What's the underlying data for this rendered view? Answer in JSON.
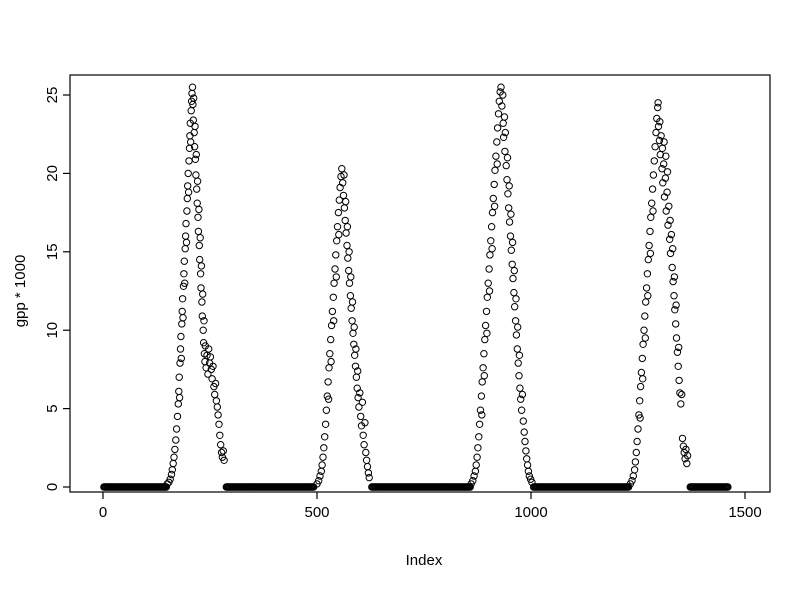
{
  "chart_data": {
    "type": "scatter",
    "title": "",
    "xlabel": "Index",
    "ylabel": "gpp * 1000",
    "xlim": [
      0,
      1500
    ],
    "ylim": [
      0,
      25.5
    ],
    "xticks": [
      0,
      500,
      1000,
      1500
    ],
    "yticks": [
      0,
      5,
      10,
      15,
      20,
      25
    ],
    "grid": false,
    "legend": "none",
    "marker": "open-circle",
    "marker_color": "#000000",
    "background": "#ffffff",
    "zero_run_step": 2,
    "zero_runs": [
      [
        2,
        148
      ],
      [
        288,
        492
      ],
      [
        628,
        858
      ],
      [
        1006,
        1228
      ],
      [
        1372,
        1460
      ]
    ],
    "points": [
      [
        150,
        0.2
      ],
      [
        154,
        0.3
      ],
      [
        157,
        0.5
      ],
      [
        160,
        0.8
      ],
      [
        162,
        1.1
      ],
      [
        164,
        1.5
      ],
      [
        166,
        1.9
      ],
      [
        168,
        2.4
      ],
      [
        170,
        3.0
      ],
      [
        172,
        3.7
      ],
      [
        174,
        4.5
      ],
      [
        176,
        5.3
      ],
      [
        177,
        6.1
      ],
      [
        178,
        7.0
      ],
      [
        179,
        5.7
      ],
      [
        180,
        7.9
      ],
      [
        181,
        8.8
      ],
      [
        182,
        9.6
      ],
      [
        183,
        8.2
      ],
      [
        184,
        10.4
      ],
      [
        185,
        11.2
      ],
      [
        186,
        12.0
      ],
      [
        187,
        10.8
      ],
      [
        188,
        12.8
      ],
      [
        189,
        13.6
      ],
      [
        190,
        14.4
      ],
      [
        191,
        13.0
      ],
      [
        192,
        15.2
      ],
      [
        193,
        16.0
      ],
      [
        194,
        16.8
      ],
      [
        195,
        15.6
      ],
      [
        196,
        17.6
      ],
      [
        197,
        18.4
      ],
      [
        198,
        19.2
      ],
      [
        199,
        20.0
      ],
      [
        200,
        18.8
      ],
      [
        201,
        20.8
      ],
      [
        202,
        21.6
      ],
      [
        203,
        22.4
      ],
      [
        204,
        23.2
      ],
      [
        205,
        22.0
      ],
      [
        206,
        24.0
      ],
      [
        207,
        24.6
      ],
      [
        208,
        25.1
      ],
      [
        209,
        25.5
      ],
      [
        210,
        24.4
      ],
      [
        211,
        23.4
      ],
      [
        212,
        24.8
      ],
      [
        213,
        22.6
      ],
      [
        214,
        21.7
      ],
      [
        215,
        23.0
      ],
      [
        216,
        20.9
      ],
      [
        217,
        19.9
      ],
      [
        218,
        21.2
      ],
      [
        219,
        19.0
      ],
      [
        220,
        18.1
      ],
      [
        221,
        19.5
      ],
      [
        222,
        17.2
      ],
      [
        223,
        16.3
      ],
      [
        224,
        17.7
      ],
      [
        225,
        15.4
      ],
      [
        226,
        14.5
      ],
      [
        227,
        15.9
      ],
      [
        228,
        13.6
      ],
      [
        229,
        12.7
      ],
      [
        230,
        14.1
      ],
      [
        231,
        11.8
      ],
      [
        232,
        10.9
      ],
      [
        233,
        12.3
      ],
      [
        234,
        10.0
      ],
      [
        235,
        9.2
      ],
      [
        236,
        10.6
      ],
      [
        237,
        8.5
      ],
      [
        238,
        8.0
      ],
      [
        239,
        9.0
      ],
      [
        241,
        7.6
      ],
      [
        243,
        8.4
      ],
      [
        245,
        7.2
      ],
      [
        247,
        8.8
      ],
      [
        249,
        7.9
      ],
      [
        251,
        8.3
      ],
      [
        253,
        7.5
      ],
      [
        255,
        6.9
      ],
      [
        257,
        7.7
      ],
      [
        259,
        6.4
      ],
      [
        261,
        5.9
      ],
      [
        263,
        6.6
      ],
      [
        265,
        5.5
      ],
      [
        267,
        5.1
      ],
      [
        269,
        4.6
      ],
      [
        271,
        4.0
      ],
      [
        273,
        3.3
      ],
      [
        275,
        2.7
      ],
      [
        277,
        2.2
      ],
      [
        279,
        1.9
      ],
      [
        281,
        2.3
      ],
      [
        283,
        1.7
      ],
      [
        500,
        0.2
      ],
      [
        504,
        0.4
      ],
      [
        507,
        0.7
      ],
      [
        510,
        1.0
      ],
      [
        512,
        1.4
      ],
      [
        514,
        1.9
      ],
      [
        516,
        2.5
      ],
      [
        518,
        3.2
      ],
      [
        520,
        4.0
      ],
      [
        522,
        4.9
      ],
      [
        524,
        5.8
      ],
      [
        526,
        6.7
      ],
      [
        527,
        5.6
      ],
      [
        528,
        7.6
      ],
      [
        530,
        8.5
      ],
      [
        532,
        9.4
      ],
      [
        533,
        8.0
      ],
      [
        534,
        10.3
      ],
      [
        536,
        11.2
      ],
      [
        538,
        12.1
      ],
      [
        539,
        10.6
      ],
      [
        540,
        13.0
      ],
      [
        542,
        13.9
      ],
      [
        544,
        14.8
      ],
      [
        545,
        13.4
      ],
      [
        546,
        15.7
      ],
      [
        548,
        16.6
      ],
      [
        550,
        17.5
      ],
      [
        551,
        16.1
      ],
      [
        552,
        18.3
      ],
      [
        554,
        19.1
      ],
      [
        556,
        19.8
      ],
      [
        558,
        20.3
      ],
      [
        560,
        19.4
      ],
      [
        562,
        18.6
      ],
      [
        563,
        19.9
      ],
      [
        564,
        17.8
      ],
      [
        566,
        17.0
      ],
      [
        567,
        18.2
      ],
      [
        568,
        16.2
      ],
      [
        570,
        15.4
      ],
      [
        571,
        16.6
      ],
      [
        572,
        14.6
      ],
      [
        574,
        13.8
      ],
      [
        575,
        15.0
      ],
      [
        576,
        13.0
      ],
      [
        578,
        12.2
      ],
      [
        579,
        13.4
      ],
      [
        580,
        11.4
      ],
      [
        582,
        10.6
      ],
      [
        583,
        11.8
      ],
      [
        584,
        9.8
      ],
      [
        586,
        9.1
      ],
      [
        587,
        10.2
      ],
      [
        588,
        8.4
      ],
      [
        590,
        7.7
      ],
      [
        591,
        8.8
      ],
      [
        592,
        7.0
      ],
      [
        594,
        6.3
      ],
      [
        595,
        7.4
      ],
      [
        596,
        5.7
      ],
      [
        598,
        5.1
      ],
      [
        600,
        6.0
      ],
      [
        602,
        4.5
      ],
      [
        604,
        3.9
      ],
      [
        606,
        5.4
      ],
      [
        608,
        3.3
      ],
      [
        610,
        2.7
      ],
      [
        612,
        4.1
      ],
      [
        614,
        2.2
      ],
      [
        616,
        1.7
      ],
      [
        618,
        1.3
      ],
      [
        620,
        0.9
      ],
      [
        622,
        0.6
      ],
      [
        860,
        0.2
      ],
      [
        864,
        0.4
      ],
      [
        867,
        0.7
      ],
      [
        870,
        1.0
      ],
      [
        872,
        1.4
      ],
      [
        874,
        1.9
      ],
      [
        876,
        2.5
      ],
      [
        878,
        3.2
      ],
      [
        880,
        4.0
      ],
      [
        882,
        4.9
      ],
      [
        884,
        5.8
      ],
      [
        885,
        4.6
      ],
      [
        886,
        6.7
      ],
      [
        888,
        7.6
      ],
      [
        890,
        8.5
      ],
      [
        891,
        7.1
      ],
      [
        892,
        9.4
      ],
      [
        894,
        10.3
      ],
      [
        896,
        11.2
      ],
      [
        897,
        9.8
      ],
      [
        898,
        12.1
      ],
      [
        900,
        13.0
      ],
      [
        902,
        13.9
      ],
      [
        903,
        12.5
      ],
      [
        904,
        14.8
      ],
      [
        906,
        15.7
      ],
      [
        908,
        16.6
      ],
      [
        909,
        15.2
      ],
      [
        910,
        17.5
      ],
      [
        912,
        18.4
      ],
      [
        914,
        19.3
      ],
      [
        915,
        17.9
      ],
      [
        916,
        20.2
      ],
      [
        918,
        21.1
      ],
      [
        920,
        22.0
      ],
      [
        921,
        20.6
      ],
      [
        922,
        22.9
      ],
      [
        924,
        23.8
      ],
      [
        926,
        24.6
      ],
      [
        928,
        25.2
      ],
      [
        930,
        25.5
      ],
      [
        932,
        24.3
      ],
      [
        934,
        25.0
      ],
      [
        935,
        23.2
      ],
      [
        936,
        22.3
      ],
      [
        938,
        23.6
      ],
      [
        939,
        21.4
      ],
      [
        940,
        22.6
      ],
      [
        942,
        20.5
      ],
      [
        944,
        19.6
      ],
      [
        945,
        21.0
      ],
      [
        946,
        18.7
      ],
      [
        948,
        17.8
      ],
      [
        949,
        19.2
      ],
      [
        950,
        16.9
      ],
      [
        952,
        16.0
      ],
      [
        953,
        17.4
      ],
      [
        954,
        15.1
      ],
      [
        956,
        14.2
      ],
      [
        957,
        15.6
      ],
      [
        958,
        13.3
      ],
      [
        960,
        12.4
      ],
      [
        961,
        13.8
      ],
      [
        962,
        11.5
      ],
      [
        964,
        10.6
      ],
      [
        965,
        12.0
      ],
      [
        966,
        9.7
      ],
      [
        968,
        8.8
      ],
      [
        969,
        10.2
      ],
      [
        970,
        7.9
      ],
      [
        972,
        7.1
      ],
      [
        973,
        8.4
      ],
      [
        974,
        6.3
      ],
      [
        976,
        5.6
      ],
      [
        978,
        4.9
      ],
      [
        980,
        5.9
      ],
      [
        982,
        4.2
      ],
      [
        984,
        3.5
      ],
      [
        986,
        2.9
      ],
      [
        988,
        2.3
      ],
      [
        990,
        1.8
      ],
      [
        992,
        1.4
      ],
      [
        994,
        1.0
      ],
      [
        996,
        0.7
      ],
      [
        999,
        0.5
      ],
      [
        1002,
        0.3
      ],
      [
        1232,
        0.2
      ],
      [
        1236,
        0.4
      ],
      [
        1239,
        0.7
      ],
      [
        1242,
        1.1
      ],
      [
        1244,
        1.6
      ],
      [
        1246,
        2.2
      ],
      [
        1248,
        2.9
      ],
      [
        1250,
        3.7
      ],
      [
        1252,
        4.6
      ],
      [
        1254,
        5.5
      ],
      [
        1255,
        4.4
      ],
      [
        1256,
        6.4
      ],
      [
        1258,
        7.3
      ],
      [
        1260,
        8.2
      ],
      [
        1261,
        6.9
      ],
      [
        1262,
        9.1
      ],
      [
        1264,
        10.0
      ],
      [
        1266,
        10.9
      ],
      [
        1267,
        9.5
      ],
      [
        1268,
        11.8
      ],
      [
        1270,
        12.7
      ],
      [
        1272,
        13.6
      ],
      [
        1273,
        12.2
      ],
      [
        1274,
        14.5
      ],
      [
        1276,
        15.4
      ],
      [
        1278,
        16.3
      ],
      [
        1279,
        14.9
      ],
      [
        1280,
        17.2
      ],
      [
        1282,
        18.1
      ],
      [
        1284,
        19.0
      ],
      [
        1285,
        17.6
      ],
      [
        1286,
        19.9
      ],
      [
        1288,
        20.8
      ],
      [
        1290,
        21.7
      ],
      [
        1292,
        22.6
      ],
      [
        1294,
        23.5
      ],
      [
        1296,
        24.2
      ],
      [
        1297,
        24.5
      ],
      [
        1298,
        23.0
      ],
      [
        1300,
        22.1
      ],
      [
        1301,
        23.3
      ],
      [
        1302,
        21.2
      ],
      [
        1304,
        22.4
      ],
      [
        1306,
        20.3
      ],
      [
        1307,
        21.6
      ],
      [
        1308,
        19.4
      ],
      [
        1310,
        20.6
      ],
      [
        1311,
        22.0
      ],
      [
        1312,
        18.5
      ],
      [
        1314,
        19.7
      ],
      [
        1315,
        21.1
      ],
      [
        1316,
        17.6
      ],
      [
        1318,
        18.8
      ],
      [
        1319,
        20.1
      ],
      [
        1320,
        16.7
      ],
      [
        1322,
        17.9
      ],
      [
        1324,
        15.8
      ],
      [
        1325,
        17.0
      ],
      [
        1326,
        14.9
      ],
      [
        1328,
        16.1
      ],
      [
        1330,
        14.0
      ],
      [
        1331,
        15.2
      ],
      [
        1332,
        13.1
      ],
      [
        1334,
        12.2
      ],
      [
        1335,
        13.4
      ],
      [
        1336,
        11.3
      ],
      [
        1338,
        10.4
      ],
      [
        1339,
        11.6
      ],
      [
        1340,
        9.5
      ],
      [
        1342,
        8.6
      ],
      [
        1344,
        7.7
      ],
      [
        1345,
        8.9
      ],
      [
        1346,
        6.8
      ],
      [
        1348,
        6.0
      ],
      [
        1350,
        5.3
      ],
      [
        1352,
        5.9
      ],
      [
        1354,
        3.1
      ],
      [
        1356,
        2.6
      ],
      [
        1358,
        2.2
      ],
      [
        1360,
        1.8
      ],
      [
        1362,
        2.4
      ],
      [
        1364,
        1.5
      ],
      [
        1366,
        2.0
      ]
    ]
  }
}
